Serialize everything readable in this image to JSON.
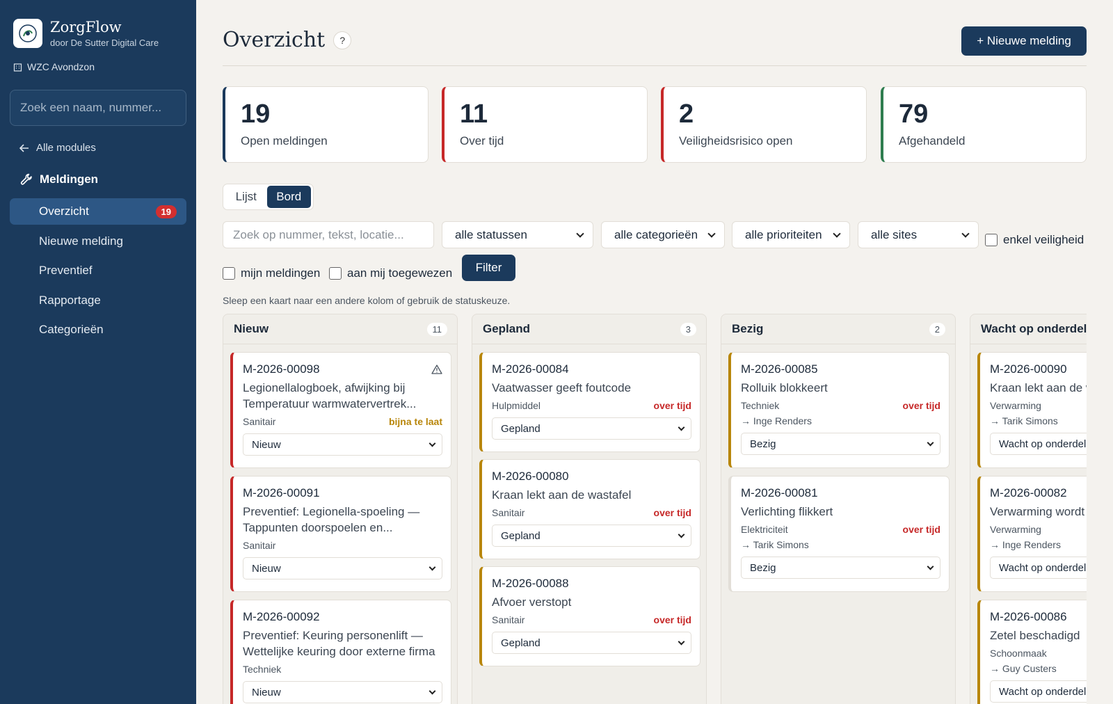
{
  "app": {
    "name": "ZorgFlow",
    "subtitle": "door De Sutter Digital Care",
    "site": "WZC Avondzon"
  },
  "sidebar": {
    "search_placeholder": "Zoek een naam, nummer...",
    "back_label": "Alle modules",
    "section_label": "Meldingen",
    "items": [
      {
        "label": "Overzicht",
        "badge": "19",
        "active": true
      },
      {
        "label": "Nieuwe melding"
      },
      {
        "label": "Preventief"
      },
      {
        "label": "Rapportage"
      },
      {
        "label": "Categorieën"
      }
    ]
  },
  "header": {
    "title": "Overzicht",
    "help": "?",
    "new_button": "+ Nieuwe melding"
  },
  "stats": [
    {
      "value": "19",
      "label": "Open meldingen",
      "color": "#1b3a5c"
    },
    {
      "value": "11",
      "label": "Over tijd",
      "color": "#c62828"
    },
    {
      "value": "2",
      "label": "Veiligheidsrisico open",
      "color": "#c62828"
    },
    {
      "value": "79",
      "label": "Afgehandeld",
      "color": "#2e7d4f"
    }
  ],
  "view_toggle": {
    "list": "Lijst",
    "board": "Bord",
    "selected": "Bord"
  },
  "filters": {
    "search_placeholder": "Zoek op nummer, tekst, locatie...",
    "status": "alle statussen",
    "category": "alle categorieën",
    "priority": "alle prioriteiten",
    "site": "alle sites",
    "only_safety": "enkel veiligheid",
    "mine": "mijn meldingen",
    "assigned_to_me": "aan mij toegewezen",
    "button": "Filter"
  },
  "hint": "Sleep een kaart naar een andere kolom of gebruik de statuskeuze.",
  "columns": [
    {
      "title": "Nieuw",
      "count": "11",
      "cards": [
        {
          "number": "M-2026-00098",
          "title": "Legionellalogboek, afwijking bij Temperatuur warmwatervertrek...",
          "category": "Sanitair",
          "flag": "bijna te laat",
          "status": "Nieuw",
          "warning_icon": "warning-triangle-icon"
        },
        {
          "number": "M-2026-00091",
          "title": "Preventief: Legionella-spoeling — Tappunten doorspoelen en...",
          "category": "Sanitair",
          "status": "Nieuw"
        },
        {
          "number": "M-2026-00092",
          "title": "Preventief: Keuring personenlift — Wettelijke keuring door externe firma",
          "category": "Techniek",
          "status": "Nieuw"
        }
      ]
    },
    {
      "title": "Gepland",
      "count": "3",
      "cards": [
        {
          "number": "M-2026-00084",
          "title": "Vaatwasser geeft foutcode",
          "category": "Hulpmiddel",
          "flag": "over tijd",
          "status": "Gepland"
        },
        {
          "number": "M-2026-00080",
          "title": "Kraan lekt aan de wastafel",
          "category": "Sanitair",
          "flag": "over tijd",
          "status": "Gepland"
        },
        {
          "number": "M-2026-00088",
          "title": "Afvoer verstopt",
          "category": "Sanitair",
          "flag": "over tijd",
          "status": "Gepland"
        }
      ]
    },
    {
      "title": "Bezig",
      "count": "2",
      "cards": [
        {
          "number": "M-2026-00085",
          "title": "Rolluik blokkeert",
          "category": "Techniek",
          "flag": "over tijd",
          "assignee": "→ Inge Renders",
          "status": "Bezig"
        },
        {
          "number": "M-2026-00081",
          "title": "Verlichting flikkert",
          "category": "Elektriciteit",
          "flag": "over tijd",
          "assignee": "→ Tarik Simons",
          "status": "Bezig"
        }
      ]
    },
    {
      "title": "Wacht op onderdelen",
      "cards": [
        {
          "number": "M-2026-00090",
          "title": "Kraan lekt aan de wastafel",
          "category": "Verwarming",
          "assignee": "→ Tarik Simons",
          "status": "Wacht op onderdelen"
        },
        {
          "number": "M-2026-00082",
          "title": "Verwarming wordt niet warm",
          "category": "Verwarming",
          "assignee": "→ Inge Renders",
          "status": "Wacht op onderdelen"
        },
        {
          "number": "M-2026-00086",
          "title": "Zetel beschadigd",
          "category": "Schoonmaak",
          "assignee": "→ Guy Custers",
          "status": "Wacht op onderdelen"
        }
      ]
    }
  ]
}
